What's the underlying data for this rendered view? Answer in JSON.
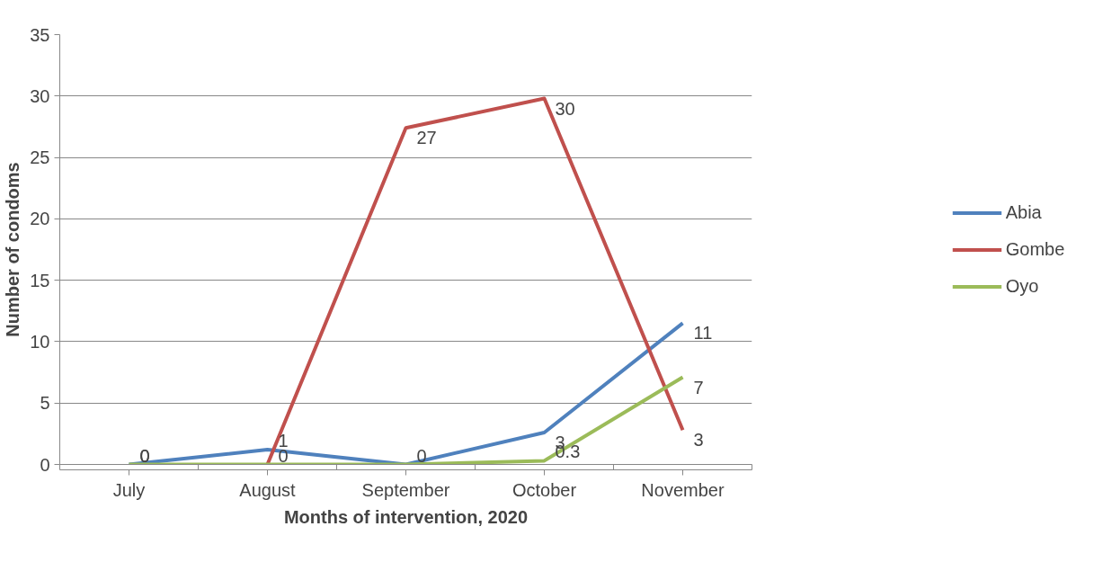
{
  "chart_data": {
    "type": "line",
    "xlabel": "Months of intervention, 2020",
    "ylabel": "Number of condoms",
    "categories": [
      "July",
      "August",
      "September",
      "October",
      "November"
    ],
    "series": [
      {
        "name": "Abia",
        "color": "#4f81bd",
        "values": [
          0,
          1.2,
          0,
          2.6,
          11.5
        ],
        "value_labels": [
          "0",
          "1",
          null,
          "3",
          "11"
        ]
      },
      {
        "name": "Gombe",
        "color": "#c0504d",
        "values": [
          null,
          0,
          27.4,
          29.8,
          2.8
        ],
        "value_labels": [
          null,
          null,
          "27",
          "30",
          "3"
        ]
      },
      {
        "name": "Oyo",
        "color": "#9bbb59",
        "values": [
          0,
          0,
          0,
          0.3,
          7.1
        ],
        "value_labels": [
          "0",
          "0",
          "0",
          "0.3",
          "7"
        ]
      }
    ],
    "ylim": [
      0,
      35
    ],
    "yticks": [
      0,
      5,
      10,
      15,
      20,
      25,
      30,
      35
    ],
    "grid": "y",
    "legend": "right"
  }
}
